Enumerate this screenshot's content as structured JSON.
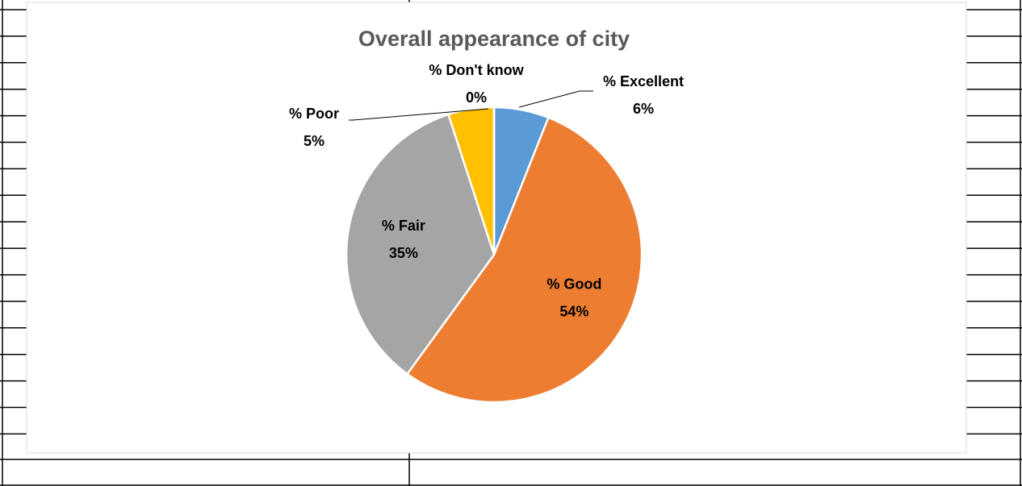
{
  "chart_data": {
    "type": "pie",
    "title": "Overall appearance of city",
    "categories": [
      "% Excellent",
      "% Good",
      "% Fair",
      "% Poor",
      "% Don't know"
    ],
    "values": [
      6,
      54,
      35,
      5,
      0
    ],
    "value_labels": [
      "6%",
      "54%",
      "35%",
      "5%",
      "0%"
    ],
    "colors": [
      "#5b9bd5",
      "#ed7d31",
      "#a5a5a5",
      "#ffc000",
      "#4472c4"
    ]
  }
}
